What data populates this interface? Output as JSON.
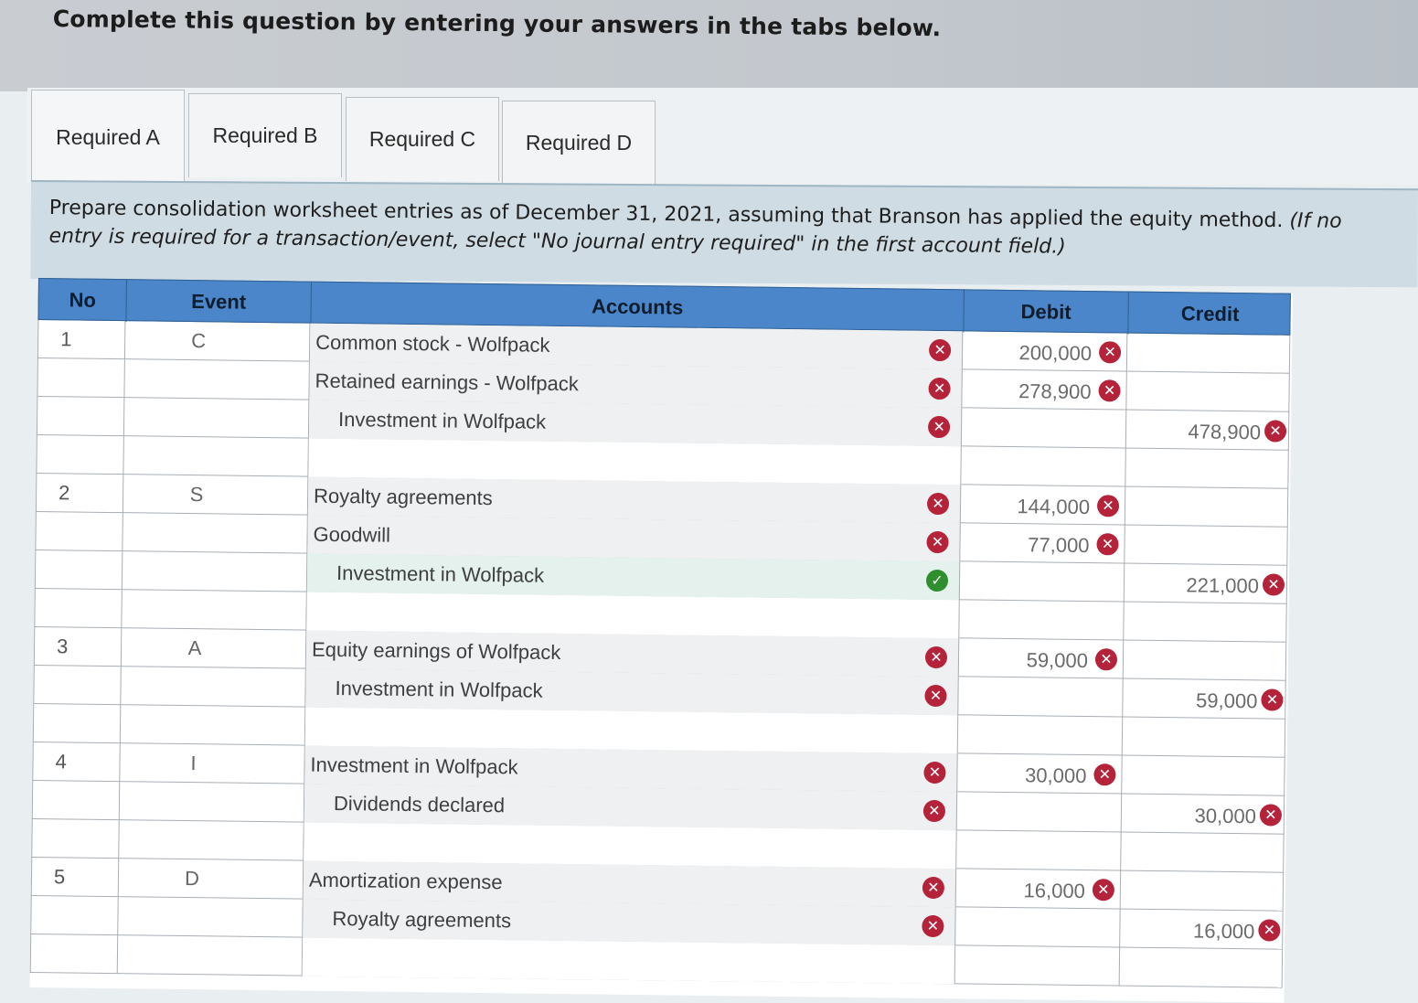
{
  "header": {
    "title": "Complete this question by entering your answers in the tabs below."
  },
  "tabs": [
    {
      "label": "Required A"
    },
    {
      "label": "Required B"
    },
    {
      "label": "Required C"
    },
    {
      "label": "Required D"
    }
  ],
  "instructions": {
    "main": "Prepare consolidation worksheet entries as of December 31, 2021, assuming that Branson has applied the equity method.",
    "note": "(If no entry is required for a transaction/event, select \"No journal entry required\" in the first account field.)"
  },
  "table": {
    "headers": {
      "no": "No",
      "event": "Event",
      "accounts": "Accounts",
      "debit": "Debit",
      "credit": "Credit"
    },
    "rows": [
      {
        "no": "1",
        "event": "C",
        "account": "Common stock - Wolfpack",
        "indent": false,
        "debit": "200,000",
        "credit": "",
        "acct_status": "incorrect",
        "debit_status": "incorrect",
        "credit_status": ""
      },
      {
        "no": "",
        "event": "",
        "account": "Retained earnings - Wolfpack",
        "indent": false,
        "debit": "278,900",
        "credit": "",
        "acct_status": "incorrect",
        "debit_status": "incorrect",
        "credit_status": ""
      },
      {
        "no": "",
        "event": "",
        "account": "Investment in Wolfpack",
        "indent": true,
        "debit": "",
        "credit": "478,900",
        "acct_status": "incorrect",
        "debit_status": "",
        "credit_status": "incorrect"
      },
      {
        "no": "",
        "event": "",
        "account": "",
        "indent": false,
        "debit": "",
        "credit": "",
        "acct_status": "",
        "debit_status": "",
        "credit_status": ""
      },
      {
        "no": "2",
        "event": "S",
        "account": "Royalty agreements",
        "indent": false,
        "debit": "144,000",
        "credit": "",
        "acct_status": "incorrect",
        "debit_status": "incorrect",
        "credit_status": ""
      },
      {
        "no": "",
        "event": "",
        "account": "Goodwill",
        "indent": false,
        "debit": "77,000",
        "credit": "",
        "acct_status": "incorrect",
        "debit_status": "incorrect",
        "credit_status": ""
      },
      {
        "no": "",
        "event": "",
        "account": "Investment in Wolfpack",
        "indent": true,
        "debit": "",
        "credit": "221,000",
        "acct_status": "correct",
        "debit_status": "",
        "credit_status": "incorrect"
      },
      {
        "no": "",
        "event": "",
        "account": "",
        "indent": false,
        "debit": "",
        "credit": "",
        "acct_status": "",
        "debit_status": "",
        "credit_status": ""
      },
      {
        "no": "3",
        "event": "A",
        "account": "Equity earnings of Wolfpack",
        "indent": false,
        "debit": "59,000",
        "credit": "",
        "acct_status": "incorrect",
        "debit_status": "incorrect",
        "credit_status": ""
      },
      {
        "no": "",
        "event": "",
        "account": "Investment in Wolfpack",
        "indent": true,
        "debit": "",
        "credit": "59,000",
        "acct_status": "incorrect",
        "debit_status": "",
        "credit_status": "incorrect"
      },
      {
        "no": "",
        "event": "",
        "account": "",
        "indent": false,
        "debit": "",
        "credit": "",
        "acct_status": "",
        "debit_status": "",
        "credit_status": ""
      },
      {
        "no": "4",
        "event": "I",
        "account": "Investment in Wolfpack",
        "indent": false,
        "debit": "30,000",
        "credit": "",
        "acct_status": "incorrect",
        "debit_status": "incorrect",
        "credit_status": ""
      },
      {
        "no": "",
        "event": "",
        "account": "Dividends declared",
        "indent": true,
        "debit": "",
        "credit": "30,000",
        "acct_status": "incorrect",
        "debit_status": "",
        "credit_status": "incorrect"
      },
      {
        "no": "",
        "event": "",
        "account": "",
        "indent": false,
        "debit": "",
        "credit": "",
        "acct_status": "",
        "debit_status": "",
        "credit_status": ""
      },
      {
        "no": "5",
        "event": "D",
        "account": "Amortization expense",
        "indent": false,
        "debit": "16,000",
        "credit": "",
        "acct_status": "incorrect",
        "debit_status": "incorrect",
        "credit_status": ""
      },
      {
        "no": "",
        "event": "",
        "account": "Royalty agreements",
        "indent": true,
        "debit": "",
        "credit": "16,000",
        "acct_status": "incorrect",
        "debit_status": "",
        "credit_status": "incorrect"
      },
      {
        "no": "",
        "event": "",
        "account": "",
        "indent": false,
        "debit": "",
        "credit": "",
        "acct_status": "",
        "debit_status": "",
        "credit_status": ""
      }
    ]
  },
  "icons": {
    "incorrect": "close-circle-icon",
    "correct": "check-circle-icon"
  },
  "colors": {
    "header_blue": "#4a86c9",
    "incorrect_red": "#b4233a",
    "correct_green": "#2f8f2f"
  }
}
